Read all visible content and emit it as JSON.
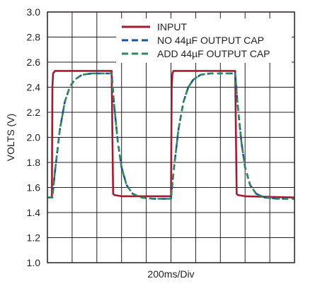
{
  "chart_data": {
    "type": "line",
    "title": "",
    "xlabel": "200ms/Div",
    "ylabel": "VOLTS (V)",
    "x_divisions": 10,
    "xlim": [
      0,
      10
    ],
    "ylim": [
      1.0,
      3.0
    ],
    "yticks": [
      "1.0",
      "1.2",
      "1.4",
      "1.6",
      "1.8",
      "2.0",
      "2.2",
      "2.4",
      "2.6",
      "2.8",
      "3.0"
    ],
    "grid": true,
    "legend": "top-right",
    "series": [
      {
        "name": "INPUT",
        "color": "#a6192e",
        "dash": "solid",
        "x": [
          0,
          0.18,
          0.2,
          0.23,
          0.3,
          2.6,
          2.63,
          2.66,
          2.7,
          3.0,
          4.9,
          5.0,
          5.03,
          5.06,
          5.1,
          7.6,
          7.63,
          7.66,
          7.7,
          8.0,
          10
        ],
        "y": [
          1.52,
          1.52,
          2.4,
          2.51,
          2.53,
          2.53,
          2.0,
          1.55,
          1.54,
          1.53,
          1.53,
          1.53,
          2.4,
          2.51,
          2.53,
          2.53,
          2.0,
          1.55,
          1.54,
          1.53,
          1.52
        ]
      },
      {
        "name": "NO 44µF OUTPUT CAP",
        "color": "#1d4fa3",
        "dash": "dashed",
        "x": [
          0,
          0.2,
          0.3,
          0.5,
          0.7,
          0.9,
          1.1,
          1.4,
          1.8,
          2.6,
          2.7,
          2.85,
          3.0,
          3.2,
          3.45,
          3.8,
          4.3,
          5.0,
          5.1,
          5.3,
          5.5,
          5.7,
          5.9,
          6.2,
          6.6,
          7.6,
          7.7,
          7.85,
          8.0,
          8.2,
          8.45,
          8.8,
          9.3,
          10
        ],
        "y": [
          1.52,
          1.52,
          1.72,
          2.06,
          2.28,
          2.4,
          2.46,
          2.5,
          2.51,
          2.51,
          2.26,
          1.96,
          1.76,
          1.62,
          1.55,
          1.52,
          1.51,
          1.51,
          1.72,
          2.06,
          2.28,
          2.4,
          2.46,
          2.5,
          2.51,
          2.51,
          2.26,
          1.96,
          1.76,
          1.62,
          1.55,
          1.52,
          1.51,
          1.51
        ]
      },
      {
        "name": "ADD 44µF OUTPUT CAP",
        "color": "#2e8b57",
        "dash": "dashed",
        "x": [
          0,
          0.2,
          0.3,
          0.5,
          0.7,
          0.9,
          1.1,
          1.4,
          1.8,
          2.6,
          2.7,
          2.85,
          3.0,
          3.2,
          3.45,
          3.8,
          4.3,
          5.0,
          5.1,
          5.3,
          5.5,
          5.7,
          5.9,
          6.2,
          6.6,
          7.6,
          7.7,
          7.85,
          8.0,
          8.2,
          8.45,
          8.8,
          9.3,
          10
        ],
        "y": [
          1.52,
          1.52,
          1.72,
          2.06,
          2.28,
          2.4,
          2.46,
          2.5,
          2.51,
          2.51,
          2.26,
          1.96,
          1.76,
          1.62,
          1.55,
          1.52,
          1.51,
          1.51,
          1.72,
          2.06,
          2.28,
          2.4,
          2.46,
          2.5,
          2.51,
          2.51,
          2.26,
          1.96,
          1.76,
          1.62,
          1.55,
          1.52,
          1.51,
          1.51
        ]
      }
    ]
  }
}
